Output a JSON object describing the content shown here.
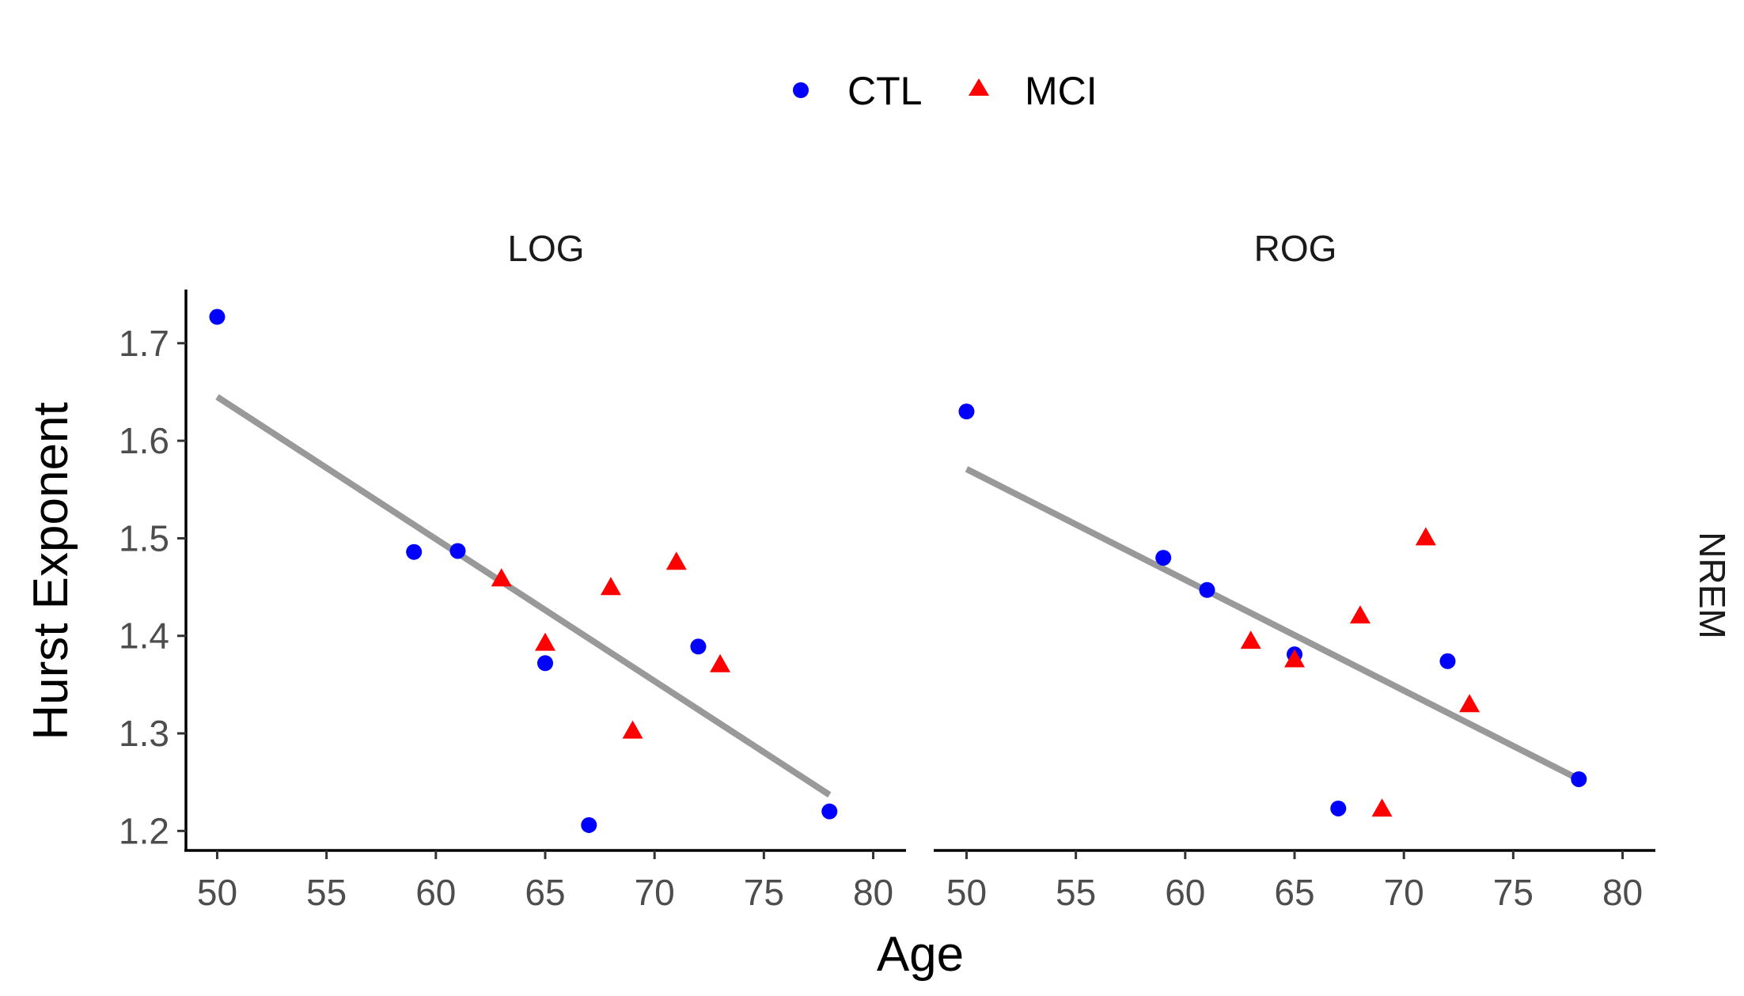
{
  "chart_data": {
    "type": "scatter",
    "xlabel": "Age",
    "ylabel": "Hurst Exponent",
    "xlim": [
      48.5,
      81.5
    ],
    "ylim": [
      1.18,
      1.755
    ],
    "xticks": [
      "50",
      "55",
      "60",
      "65",
      "70",
      "75",
      "80"
    ],
    "yticks": [
      "1.2",
      "1.3",
      "1.4",
      "1.5",
      "1.6",
      "1.7"
    ],
    "grid": false,
    "legend_position": "top",
    "row_strip": "NREM",
    "legend": [
      {
        "name": "CTL",
        "shape": "circle",
        "color": "#0000ff"
      },
      {
        "name": "MCI",
        "shape": "triangle",
        "color": "#ff0000"
      }
    ],
    "fit_line_color": "#999999",
    "panels": [
      {
        "label": "LOG",
        "series": [
          {
            "name": "CTL",
            "points": [
              [
                50,
                1.727
              ],
              [
                59,
                1.486
              ],
              [
                61,
                1.487
              ],
              [
                65,
                1.372
              ],
              [
                67,
                1.206
              ],
              [
                72,
                1.389
              ],
              [
                78,
                1.22
              ]
            ]
          },
          {
            "name": "MCI",
            "points": [
              [
                63,
                1.458
              ],
              [
                65,
                1.392
              ],
              [
                68,
                1.449
              ],
              [
                69,
                1.302
              ],
              [
                71,
                1.475
              ],
              [
                73,
                1.37
              ]
            ]
          }
        ],
        "fit": [
          [
            50,
            1.645
          ],
          [
            78,
            1.237
          ]
        ]
      },
      {
        "label": "ROG",
        "series": [
          {
            "name": "CTL",
            "points": [
              [
                50,
                1.63
              ],
              [
                59,
                1.48
              ],
              [
                61,
                1.447
              ],
              [
                65,
                1.381
              ],
              [
                67,
                1.223
              ],
              [
                72,
                1.374
              ],
              [
                78,
                1.253
              ]
            ]
          },
          {
            "name": "MCI",
            "points": [
              [
                63,
                1.394
              ],
              [
                65,
                1.375
              ],
              [
                68,
                1.42
              ],
              [
                69,
                1.222
              ],
              [
                71,
                1.5
              ],
              [
                73,
                1.329
              ]
            ]
          }
        ],
        "fit": [
          [
            50,
            1.571
          ],
          [
            78,
            1.253
          ]
        ]
      }
    ]
  }
}
